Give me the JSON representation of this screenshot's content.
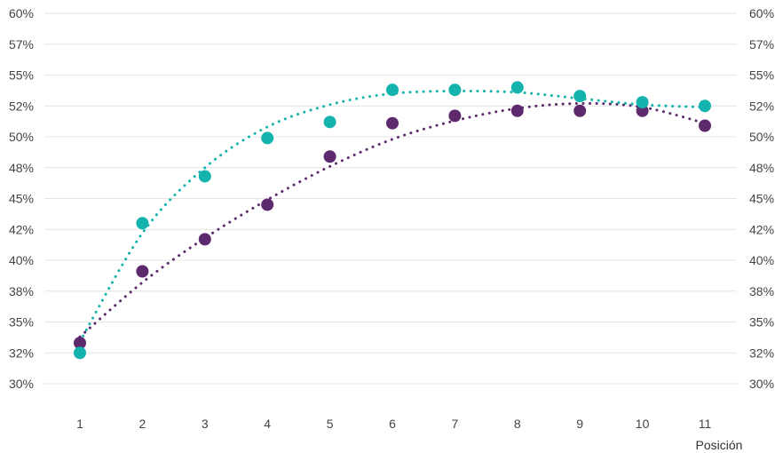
{
  "chart_data": {
    "type": "scatter",
    "xlabel": "Posición",
    "ylabel": "",
    "x": [
      1,
      2,
      3,
      4,
      5,
      6,
      7,
      8,
      9,
      10,
      11
    ],
    "xlim": [
      1,
      11
    ],
    "ylim": [
      30,
      60
    ],
    "y_ticks": [
      30,
      32.5,
      35,
      37.5,
      40,
      42.5,
      45,
      47.5,
      50,
      52.5,
      55,
      57.5,
      60
    ],
    "y_tick_labels": [
      "30%",
      "32%",
      "35%",
      "38%",
      "40%",
      "42%",
      "45%",
      "48%",
      "50%",
      "52%",
      "55%",
      "57%",
      "60%"
    ],
    "grid": true,
    "dual_y_axis": true,
    "trendline": "dotted polynomial",
    "series": [
      {
        "color": "#14b3ad",
        "values": [
          32.5,
          43.0,
          46.8,
          49.9,
          51.2,
          53.8,
          53.8,
          54.0,
          53.3,
          52.8,
          52.5
        ],
        "trend": [
          33.4,
          42.2,
          47.5,
          50.8,
          52.6,
          53.5,
          53.7,
          53.6,
          53.1,
          52.6,
          52.4
        ]
      },
      {
        "color": "#5e2a6e",
        "values": [
          33.3,
          39.1,
          41.7,
          44.5,
          48.4,
          51.1,
          51.7,
          52.1,
          52.1,
          52.1,
          50.9
        ],
        "trend": [
          33.8,
          38.2,
          41.8,
          44.9,
          47.6,
          49.8,
          51.3,
          52.3,
          52.7,
          52.4,
          51.1
        ]
      }
    ]
  }
}
